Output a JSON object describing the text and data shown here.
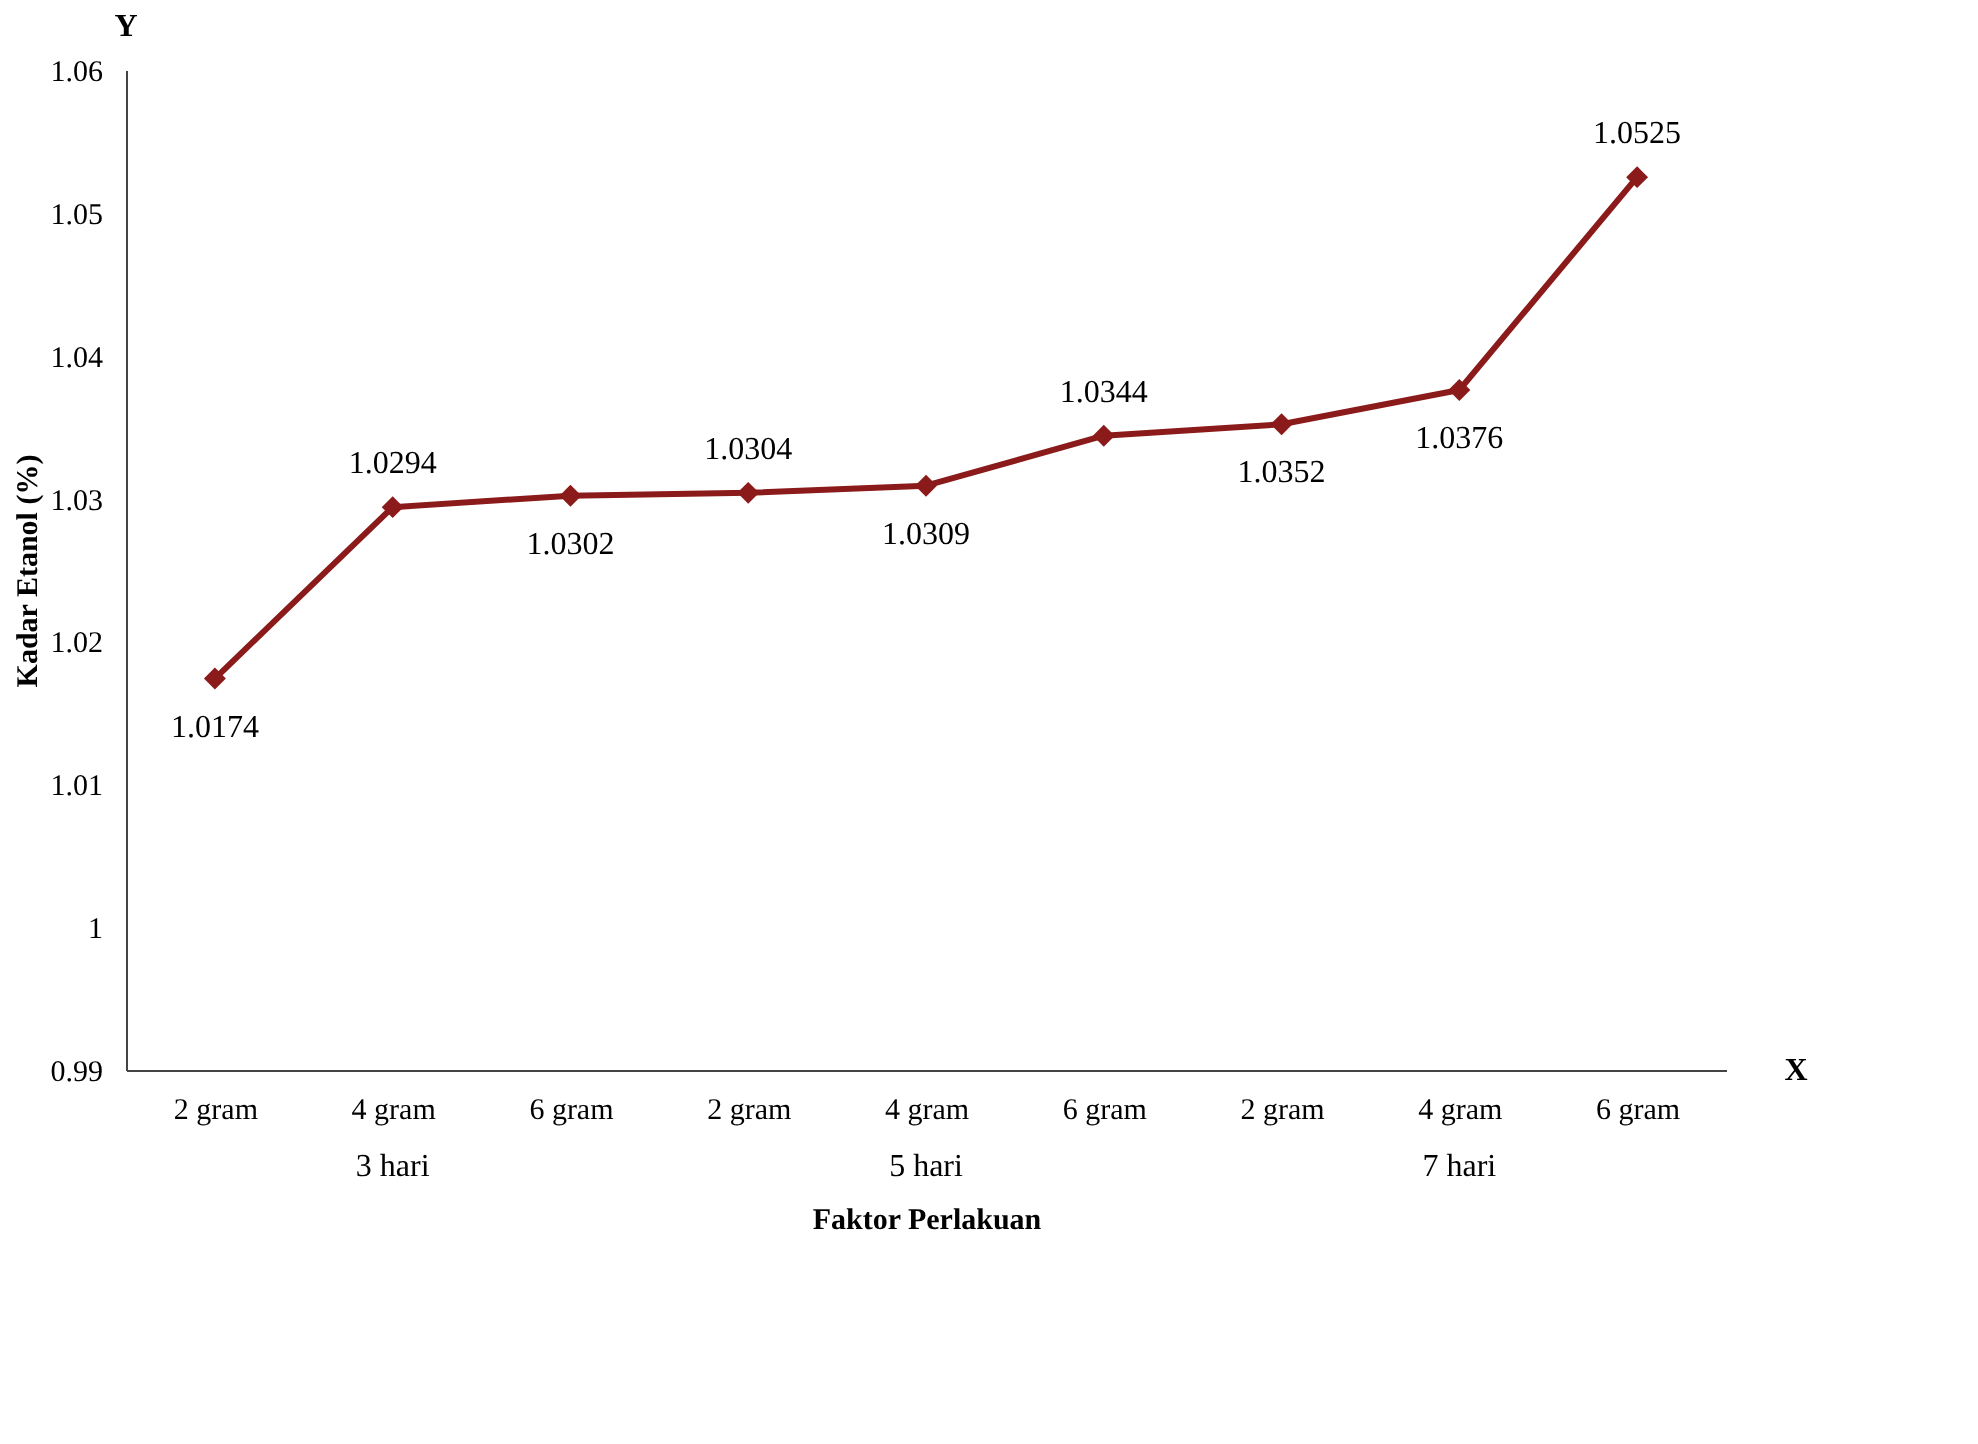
{
  "chart_data": {
    "type": "line",
    "xlabel": "Faktor Perlakuan",
    "ylabel": "Kadar Etanol (%)",
    "categories": [
      "2 gram",
      "4 gram",
      "6 gram",
      "2 gram",
      "4 gram",
      "6 gram",
      "2 gram",
      "4 gram",
      "6 gram"
    ],
    "series": [
      {
        "color": "#8b1a1a",
        "values": [
          1.0174,
          1.0294,
          1.0302,
          1.0304,
          1.0309,
          1.0344,
          1.0352,
          1.0376,
          1.0525
        ]
      }
    ],
    "ylim": [
      0.99,
      1.06
    ],
    "yticks": [
      0.99,
      1,
      1.01,
      1.02,
      1.03,
      1.04,
      1.05,
      1.06
    ],
    "data_labels": true,
    "marker": "diamond",
    "line_style": "solid",
    "grid": false,
    "annotations": [
      "Y",
      "X",
      "3 hari",
      "5 hari",
      "7 hari"
    ]
  }
}
